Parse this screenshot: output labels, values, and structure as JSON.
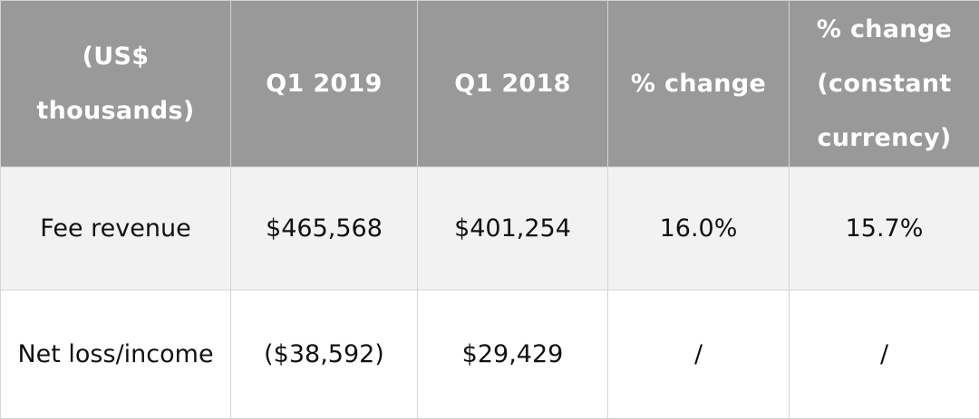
{
  "table": {
    "headers": [
      "(US$ thousands)",
      "Q1 2019",
      "Q1 2018",
      "% change",
      "% change (constant currency)"
    ],
    "rows": [
      [
        "Fee revenue",
        "$465,568",
        "$401,254",
        "16.0%",
        "15.7%"
      ],
      [
        "Net loss/income",
        "($38,592)",
        "$29,429",
        "/",
        "/"
      ]
    ]
  },
  "colors": {
    "header_bg": "#999999",
    "header_text": "#ffffff",
    "row_alt_bg": "#f2f2f2",
    "row_bg": "#ffffff",
    "border": "#d4d4d4"
  }
}
